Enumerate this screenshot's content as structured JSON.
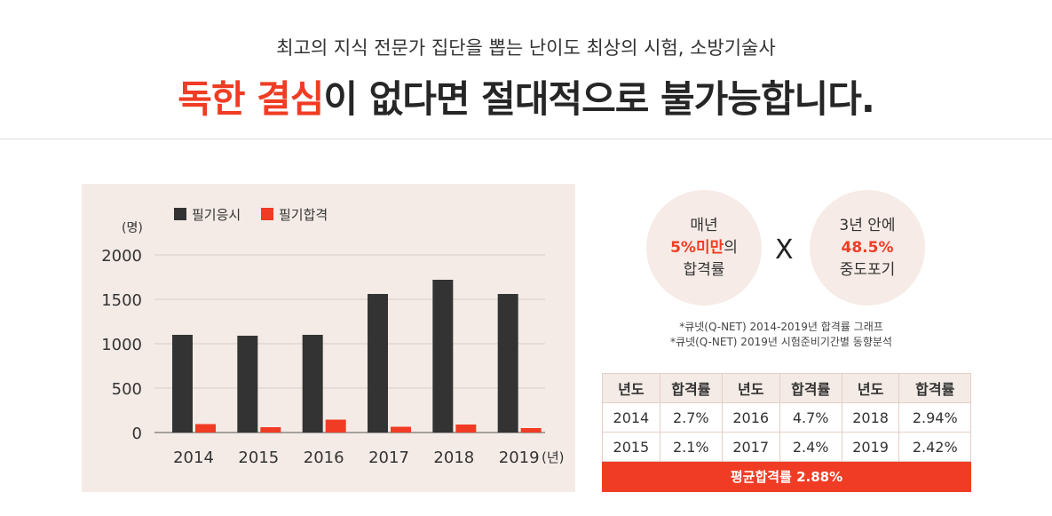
{
  "header": {
    "subtitle": "최고의 지식 전문가 집단을 뽑는 난이도 최상의 시험, 소방기술사",
    "headline_highlight": "독한 결심",
    "headline_rest": "이 없다면 절대적으로 불가능합니다."
  },
  "colors": {
    "accent": "#f03c24",
    "dark_bar": "#333333",
    "panel_bg": "#f4ebe6"
  },
  "chart_data": {
    "type": "bar",
    "categories": [
      "2014",
      "2015",
      "2016",
      "2017",
      "2018",
      "2019"
    ],
    "series": [
      {
        "name": "필기응시",
        "color": "#333333",
        "values": [
          1100,
          1090,
          1100,
          1560,
          1720,
          1560
        ]
      },
      {
        "name": "필기합격",
        "color": "#f03c24",
        "values": [
          95,
          60,
          145,
          65,
          90,
          50
        ]
      }
    ],
    "ylabel": "(명)",
    "xlabel": "(년)",
    "yticks": [
      0,
      500,
      1000,
      1500,
      2000
    ],
    "ylim": [
      0,
      2000
    ],
    "legend_position": "top-left",
    "grid": true
  },
  "stats": {
    "circle1": {
      "line1": "매년",
      "highlight": "5%미만",
      "suffix": "의",
      "line3": "합격률"
    },
    "operator": "X",
    "circle2": {
      "line1": "3년 안에",
      "highlight": "48.5%",
      "line3": "중도포기"
    },
    "notes": [
      "*큐넷(Q-NET) 2014-2019년 합격률 그래프",
      "*큐넷(Q-NET) 2019년 시험준비기간별 동향분석"
    ]
  },
  "table": {
    "headers": [
      "년도",
      "합격률",
      "년도",
      "합격률",
      "년도",
      "합격률"
    ],
    "rows": [
      [
        "2014",
        "2.7%",
        "2016",
        "4.7%",
        "2018",
        "2.94%"
      ],
      [
        "2015",
        "2.1%",
        "2017",
        "2.4%",
        "2019",
        "2.42%"
      ]
    ],
    "average": "평균합격률 2.88%"
  }
}
